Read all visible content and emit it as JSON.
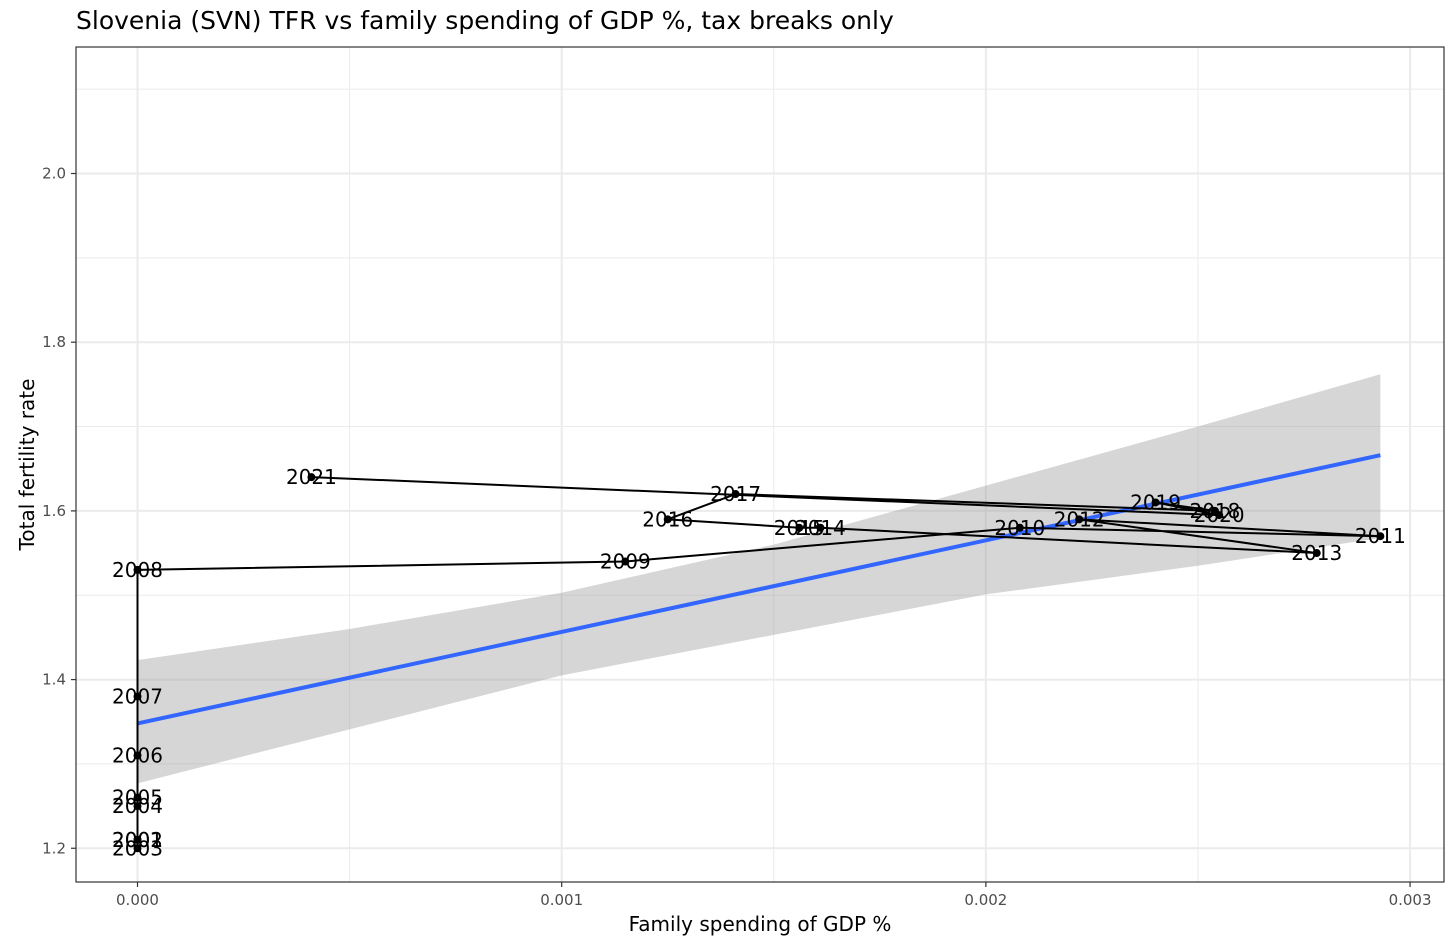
{
  "chart_data": {
    "type": "scatter",
    "title": "Slovenia (SVN) TFR vs family spending of GDP %, tax breaks only",
    "xlabel": "Family spending of GDP %",
    "ylabel": "Total fertility rate",
    "xlim": [
      -0.000145,
      0.00308
    ],
    "ylim": [
      1.16,
      2.15
    ],
    "x_ticks": [
      0.0,
      0.001,
      0.002,
      0.003
    ],
    "x_tick_labels": [
      "0.000",
      "0.001",
      "0.002",
      "0.003"
    ],
    "y_ticks": [
      1.2,
      1.4,
      1.6,
      1.8,
      2.0
    ],
    "y_tick_labels": [
      "1.2",
      "1.4",
      "1.6",
      "1.8",
      "2.0"
    ],
    "grid": true,
    "colors": {
      "path": "#000000",
      "points": "#000000",
      "fit_line": "#3366ff",
      "confidence_band": "#999999",
      "grid": "#ebebeb",
      "panel_border": "#333333"
    },
    "series": [
      {
        "name": "observations",
        "points": [
          {
            "year": "2001",
            "x": 0.0,
            "y": 1.21
          },
          {
            "year": "2002",
            "x": 0.0,
            "y": 1.21
          },
          {
            "year": "2003",
            "x": 0.0,
            "y": 1.2
          },
          {
            "year": "2004",
            "x": 0.0,
            "y": 1.25
          },
          {
            "year": "2005",
            "x": 0.0,
            "y": 1.26
          },
          {
            "year": "2006",
            "x": 0.0,
            "y": 1.31
          },
          {
            "year": "2007",
            "x": 0.0,
            "y": 1.38
          },
          {
            "year": "2008",
            "x": 0.0,
            "y": 1.53
          },
          {
            "year": "2009",
            "x": 0.00115,
            "y": 1.54
          },
          {
            "year": "2010",
            "x": 0.00208,
            "y": 1.58
          },
          {
            "year": "2011",
            "x": 0.00293,
            "y": 1.57
          },
          {
            "year": "2012",
            "x": 0.00222,
            "y": 1.59
          },
          {
            "year": "2013",
            "x": 0.00278,
            "y": 1.55
          },
          {
            "year": "2014",
            "x": 0.00161,
            "y": 1.58
          },
          {
            "year": "2015",
            "x": 0.00156,
            "y": 1.58
          },
          {
            "year": "2016",
            "x": 0.00125,
            "y": 1.59
          },
          {
            "year": "2017",
            "x": 0.00141,
            "y": 1.62
          },
          {
            "year": "2018",
            "x": 0.00254,
            "y": 1.6
          },
          {
            "year": "2019",
            "x": 0.0024,
            "y": 1.61
          },
          {
            "year": "2020",
            "x": 0.00255,
            "y": 1.595
          },
          {
            "year": "2021",
            "x": 0.00041,
            "y": 1.64
          }
        ]
      }
    ],
    "fit": {
      "method": "linear",
      "x_range": [
        0.0,
        0.00293
      ],
      "y_at_start": 1.348,
      "y_at_end": 1.666,
      "ci_lower": [
        {
          "x": 0.0,
          "y": 1.277
        },
        {
          "x": 0.0005,
          "y": 1.341
        },
        {
          "x": 0.001,
          "y": 1.405
        },
        {
          "x": 0.0015,
          "y": 1.453
        },
        {
          "x": 0.002,
          "y": 1.501
        },
        {
          "x": 0.0025,
          "y": 1.535
        },
        {
          "x": 0.00293,
          "y": 1.568
        }
      ],
      "ci_upper": [
        {
          "x": 0.0,
          "y": 1.423
        },
        {
          "x": 0.0005,
          "y": 1.46
        },
        {
          "x": 0.001,
          "y": 1.503
        },
        {
          "x": 0.0015,
          "y": 1.56
        },
        {
          "x": 0.002,
          "y": 1.63
        },
        {
          "x": 0.0025,
          "y": 1.7
        },
        {
          "x": 0.00293,
          "y": 1.762
        }
      ]
    }
  }
}
